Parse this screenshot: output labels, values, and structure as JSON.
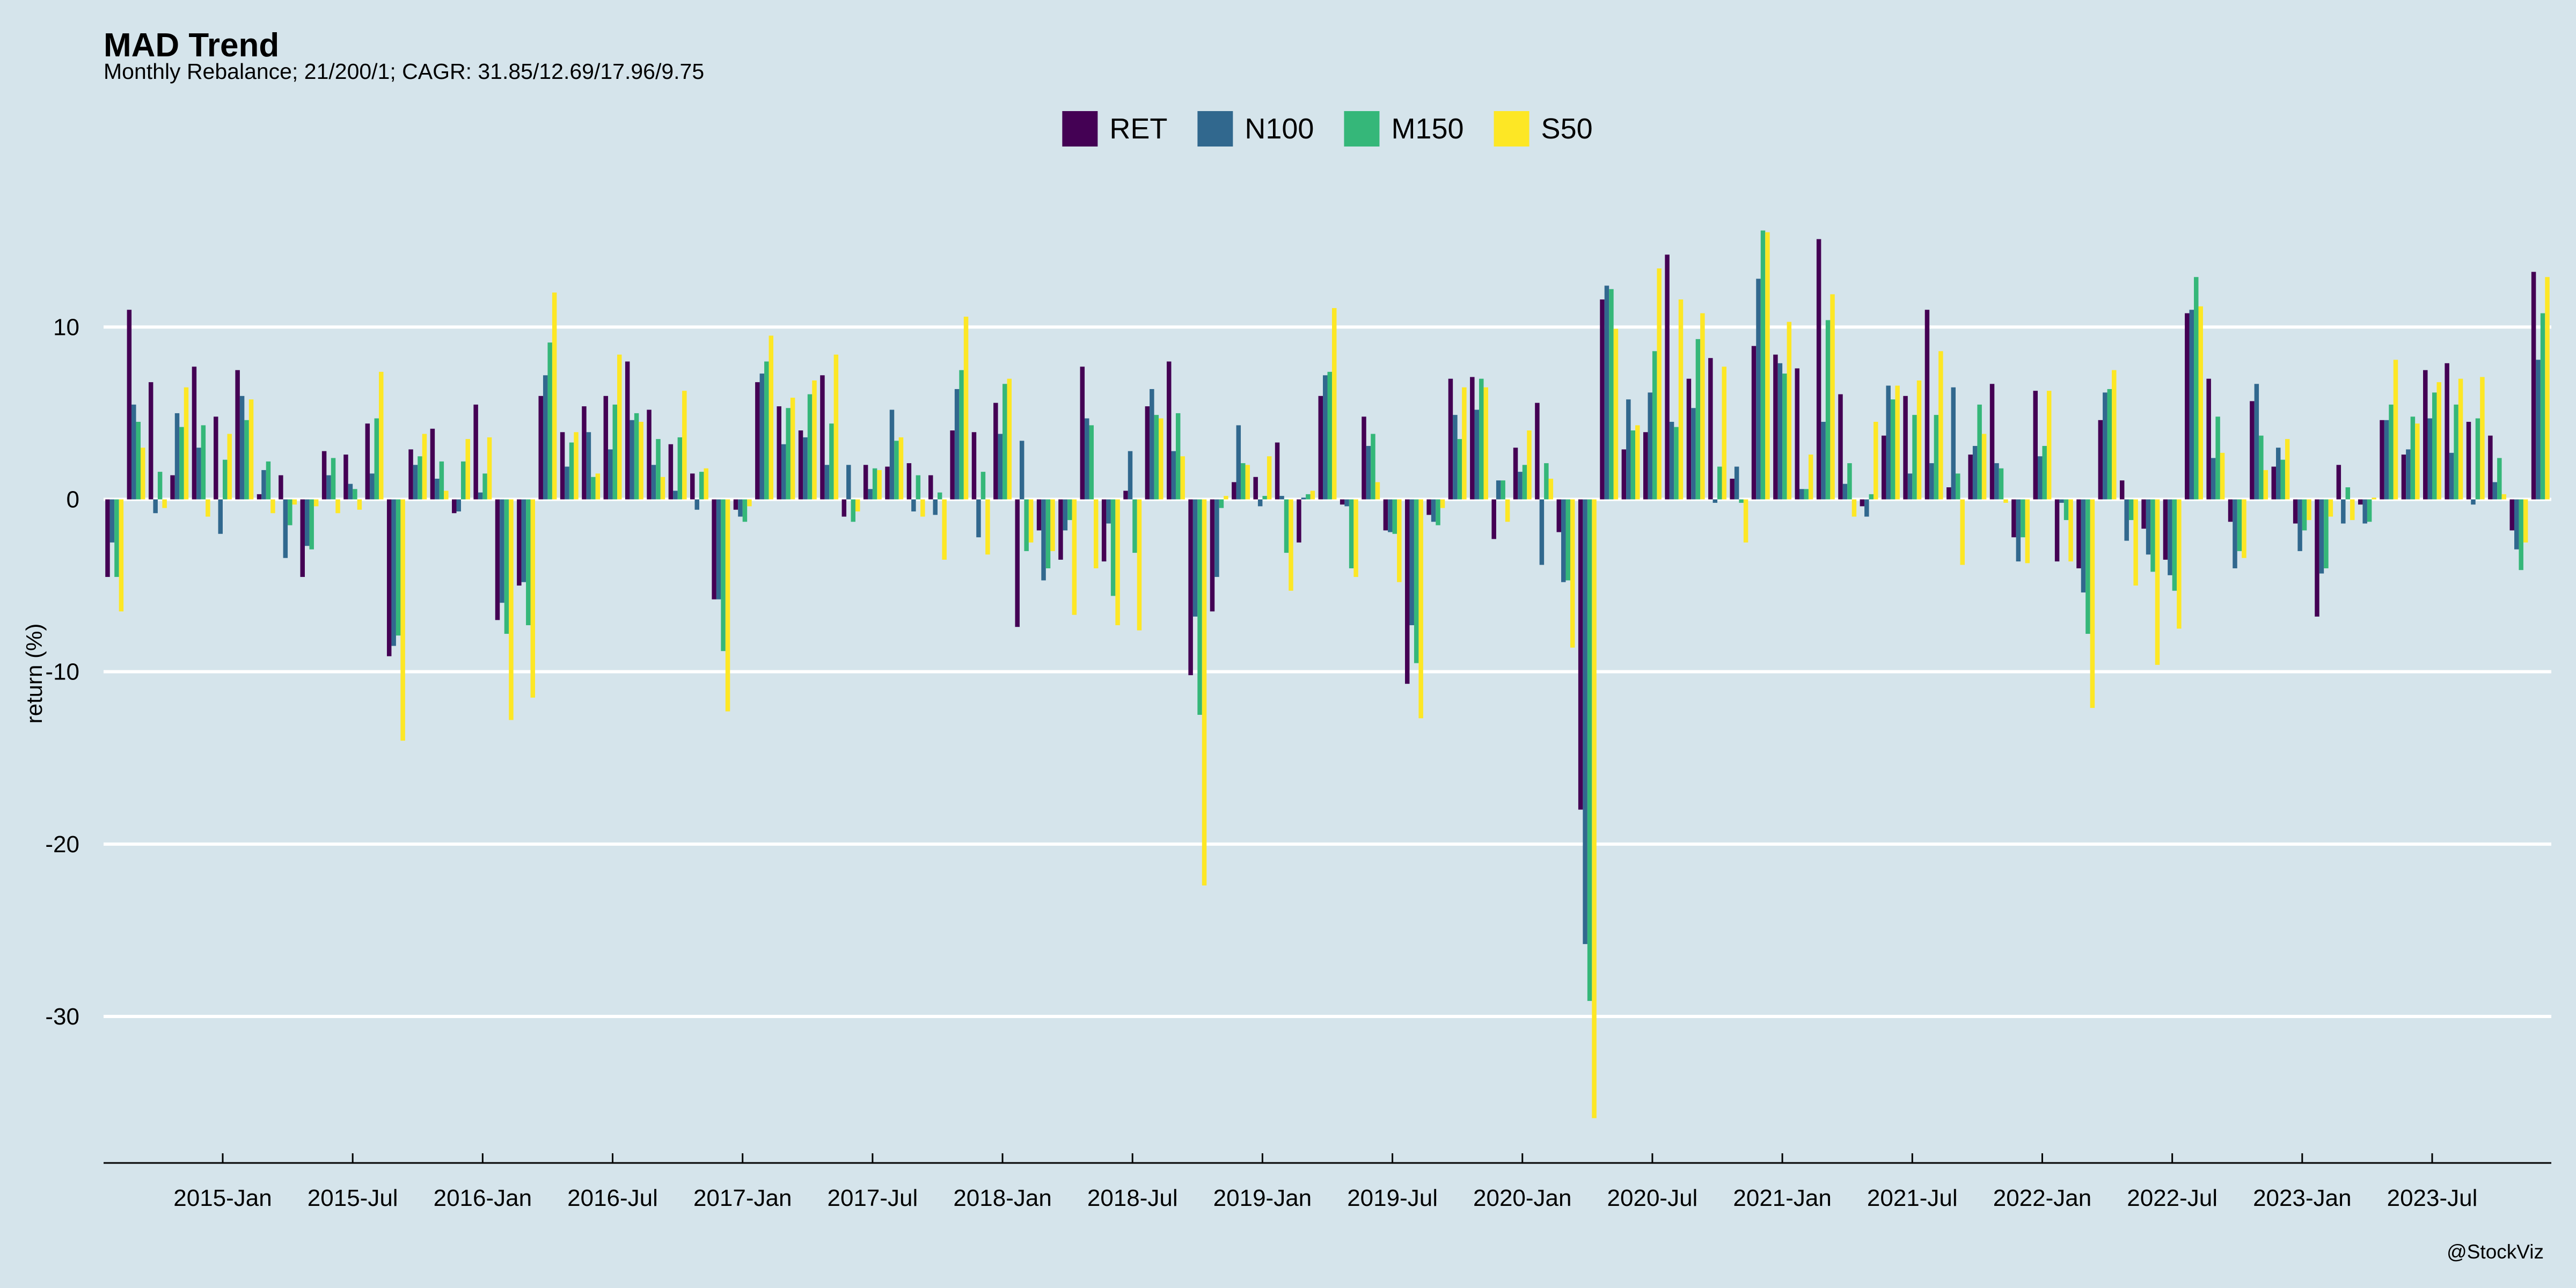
{
  "chart_data": {
    "type": "bar",
    "title": "MAD Trend",
    "subtitle": "Monthly Rebalance; 21/200/1; CAGR: 31.85/12.69/17.96/9.75",
    "y_label": "return (%)",
    "caption": "@StockViz",
    "x": [
      "2014-07",
      "2014-08",
      "2014-09",
      "2014-10",
      "2014-11",
      "2014-12",
      "2015-01",
      "2015-02",
      "2015-03",
      "2015-04",
      "2015-05",
      "2015-06",
      "2015-07",
      "2015-08",
      "2015-09",
      "2015-10",
      "2015-11",
      "2015-12",
      "2016-01",
      "2016-02",
      "2016-03",
      "2016-04",
      "2016-05",
      "2016-06",
      "2016-07",
      "2016-08",
      "2016-09",
      "2016-10",
      "2016-11",
      "2016-12",
      "2017-01",
      "2017-02",
      "2017-03",
      "2017-04",
      "2017-05",
      "2017-06",
      "2017-07",
      "2017-08",
      "2017-09",
      "2017-10",
      "2017-11",
      "2017-12",
      "2018-01",
      "2018-02",
      "2018-03",
      "2018-04",
      "2018-05",
      "2018-06",
      "2018-07",
      "2018-08",
      "2018-09",
      "2018-10",
      "2018-11",
      "2018-12",
      "2019-01",
      "2019-02",
      "2019-03",
      "2019-04",
      "2019-05",
      "2019-06",
      "2019-07",
      "2019-08",
      "2019-09",
      "2019-10",
      "2019-11",
      "2019-12",
      "2020-01",
      "2020-02",
      "2020-03",
      "2020-04",
      "2020-05",
      "2020-06",
      "2020-07",
      "2020-08",
      "2020-09",
      "2020-10",
      "2020-11",
      "2020-12",
      "2021-01",
      "2021-02",
      "2021-03",
      "2021-04",
      "2021-05",
      "2021-06",
      "2021-07",
      "2021-08",
      "2021-09",
      "2021-10",
      "2021-11",
      "2021-12",
      "2022-01",
      "2022-02",
      "2022-03",
      "2022-04",
      "2022-05",
      "2022-06",
      "2022-07",
      "2022-08",
      "2022-09",
      "2022-10",
      "2022-11",
      "2022-12",
      "2023-01",
      "2023-02",
      "2023-03",
      "2023-04",
      "2023-05",
      "2023-06",
      "2023-07",
      "2023-08",
      "2023-09",
      "2023-10",
      "2023-11"
    ],
    "series": [
      {
        "name": "RET",
        "color": "#440154",
        "values": [
          -4.5,
          11.0,
          6.8,
          1.4,
          7.7,
          4.8,
          7.5,
          0.3,
          1.4,
          -4.5,
          2.8,
          2.6,
          4.4,
          -9.1,
          2.9,
          4.1,
          -0.8,
          5.5,
          -7.0,
          -5.0,
          6.0,
          3.9,
          5.4,
          6.0,
          8.0,
          5.2,
          3.2,
          1.5,
          -5.8,
          -0.6,
          6.8,
          5.4,
          4.0,
          7.2,
          -1.0,
          2.0,
          1.9,
          2.1,
          1.4,
          4.0,
          3.9,
          5.6,
          -7.4,
          -1.8,
          -3.5,
          7.7,
          -3.6,
          0.5,
          5.4,
          8.0,
          -10.2,
          -6.5,
          1.0,
          1.3,
          3.3,
          -2.5,
          6.0,
          -0.3,
          4.8,
          -1.8,
          -10.7,
          -0.9,
          7.0,
          7.1,
          -2.3,
          3.0,
          5.6,
          -1.9,
          -18.0,
          11.6,
          2.9,
          3.9,
          14.2,
          7.0,
          8.2,
          1.2,
          8.9,
          8.4,
          7.6,
          15.1,
          6.1,
          -0.4,
          3.7,
          6.0,
          11.0,
          0.7,
          2.6,
          6.7,
          -2.2,
          6.3,
          -3.6,
          -4.0,
          4.6,
          1.1,
          -1.7,
          -3.5,
          10.8,
          7.0,
          -1.3,
          5.7,
          1.9,
          -1.4,
          -6.8,
          2.0,
          -0.3,
          4.6,
          2.6,
          7.5,
          7.9,
          4.5,
          3.7,
          -1.8,
          13.2
        ]
      },
      {
        "name": "N100",
        "color": "#31688e",
        "values": [
          -2.5,
          5.5,
          -0.8,
          5.0,
          3.0,
          -2.0,
          6.0,
          1.7,
          -3.4,
          -2.7,
          1.4,
          0.9,
          1.5,
          -8.5,
          2.0,
          1.2,
          -0.7,
          0.4,
          -6.0,
          -4.8,
          7.2,
          1.9,
          3.9,
          2.9,
          4.6,
          2.0,
          0.5,
          -0.6,
          -5.8,
          -1.0,
          7.3,
          3.2,
          3.6,
          2.0,
          2.0,
          0.6,
          5.2,
          -0.7,
          -0.9,
          6.4,
          -2.2,
          3.8,
          3.4,
          -4.7,
          -1.8,
          4.7,
          -1.4,
          2.8,
          6.4,
          2.8,
          -6.8,
          -4.5,
          4.3,
          -0.4,
          0.2,
          0.1,
          7.2,
          -0.4,
          3.1,
          -1.9,
          -7.3,
          -1.3,
          4.9,
          5.2,
          1.1,
          1.6,
          -3.8,
          -4.8,
          -25.8,
          12.4,
          5.8,
          6.2,
          4.5,
          5.3,
          -0.2,
          1.9,
          12.8,
          7.9,
          0.6,
          4.5,
          0.9,
          -1.0,
          6.6,
          1.5,
          2.1,
          6.5,
          3.1,
          2.1,
          -3.6,
          2.5,
          -0.2,
          -5.4,
          6.2,
          -2.4,
          -3.2,
          -4.4,
          11.0,
          2.4,
          -4.0,
          6.7,
          3.0,
          -3.0,
          -4.3,
          -1.4,
          -1.4,
          4.6,
          2.9,
          4.7,
          2.7,
          -0.3,
          1.0,
          -2.9,
          8.1
        ]
      },
      {
        "name": "M150",
        "color": "#35b779",
        "values": [
          -4.5,
          4.5,
          1.6,
          4.2,
          4.3,
          2.3,
          4.6,
          2.2,
          -1.5,
          -2.9,
          2.4,
          0.6,
          4.7,
          -7.9,
          2.5,
          2.2,
          2.2,
          1.5,
          -7.8,
          -7.3,
          9.1,
          3.3,
          1.3,
          5.5,
          5.0,
          3.5,
          3.6,
          1.6,
          -8.8,
          -1.3,
          8.0,
          5.3,
          6.1,
          4.4,
          -1.3,
          1.8,
          3.4,
          1.4,
          0.4,
          7.5,
          1.6,
          6.7,
          -3.0,
          -4.0,
          -1.2,
          4.3,
          -5.6,
          -3.1,
          4.9,
          5.0,
          -12.5,
          -0.5,
          2.1,
          0.2,
          -3.1,
          0.3,
          7.4,
          -4.0,
          3.8,
          -2.0,
          -9.5,
          -1.5,
          3.5,
          7.0,
          1.1,
          2.0,
          2.1,
          -4.7,
          -29.1,
          12.2,
          4.0,
          8.6,
          4.2,
          9.3,
          1.9,
          -0.2,
          15.6,
          7.3,
          0.6,
          10.4,
          2.1,
          0.3,
          5.8,
          4.9,
          4.9,
          1.5,
          5.5,
          1.8,
          -2.2,
          3.1,
          -1.2,
          -7.8,
          6.4,
          -1.2,
          -4.2,
          -5.3,
          12.9,
          4.8,
          -3.0,
          3.7,
          2.3,
          -1.8,
          -4.0,
          0.7,
          -1.3,
          5.5,
          4.8,
          6.2,
          5.5,
          4.7,
          2.4,
          -4.1,
          10.8
        ]
      },
      {
        "name": "S50",
        "color": "#fde725",
        "values": [
          -6.5,
          3.0,
          -0.5,
          6.5,
          -1.0,
          3.8,
          5.8,
          -0.8,
          -0.3,
          -0.4,
          -0.8,
          -0.6,
          7.4,
          -14.0,
          3.8,
          0.5,
          3.5,
          3.6,
          -12.8,
          -11.5,
          12.0,
          3.9,
          1.5,
          8.4,
          4.5,
          1.3,
          6.3,
          1.8,
          -12.3,
          -0.4,
          9.5,
          5.9,
          6.9,
          8.4,
          -0.7,
          1.7,
          3.6,
          -1.0,
          -3.5,
          10.6,
          -3.2,
          7.0,
          -2.5,
          -3.0,
          -6.7,
          -4.0,
          -7.3,
          -7.6,
          4.7,
          2.5,
          -22.4,
          0.2,
          2.0,
          2.5,
          -5.3,
          0.5,
          11.1,
          -4.5,
          1.0,
          -4.8,
          -12.7,
          -0.5,
          6.5,
          6.5,
          -1.3,
          4.0,
          1.2,
          -8.6,
          -35.9,
          9.9,
          4.3,
          13.4,
          11.6,
          10.8,
          7.7,
          -2.5,
          15.5,
          10.3,
          2.6,
          11.9,
          -1.0,
          4.5,
          6.6,
          6.9,
          8.6,
          -3.8,
          3.8,
          -0.2,
          -3.7,
          6.3,
          -3.6,
          -12.1,
          7.5,
          -5.0,
          -9.6,
          -7.5,
          11.2,
          2.7,
          -3.4,
          1.7,
          3.5,
          -1.2,
          -1.0,
          -1.2,
          0.1,
          8.1,
          4.4,
          6.8,
          7.0,
          7.1,
          0.3,
          -2.5,
          12.9
        ]
      }
    ],
    "xlim": [
      "2014-07",
      "2023-12"
    ],
    "xticks": [
      {
        "value": "2015-01",
        "label": "2015-Jan"
      },
      {
        "value": "2015-07",
        "label": "2015-Jul"
      },
      {
        "value": "2016-01",
        "label": "2016-Jan"
      },
      {
        "value": "2016-07",
        "label": "2016-Jul"
      },
      {
        "value": "2017-01",
        "label": "2017-Jan"
      },
      {
        "value": "2017-07",
        "label": "2017-Jul"
      },
      {
        "value": "2018-01",
        "label": "2018-Jan"
      },
      {
        "value": "2018-07",
        "label": "2018-Jul"
      },
      {
        "value": "2019-01",
        "label": "2019-Jan"
      },
      {
        "value": "2019-07",
        "label": "2019-Jul"
      },
      {
        "value": "2020-01",
        "label": "2020-Jan"
      },
      {
        "value": "2020-07",
        "label": "2020-Jul"
      },
      {
        "value": "2021-01",
        "label": "2021-Jan"
      },
      {
        "value": "2021-07",
        "label": "2021-Jul"
      },
      {
        "value": "2022-01",
        "label": "2022-Jan"
      },
      {
        "value": "2022-07",
        "label": "2022-Jul"
      },
      {
        "value": "2023-01",
        "label": "2023-Jan"
      },
      {
        "value": "2023-07",
        "label": "2023-Jul"
      }
    ],
    "ylim": [
      -38.5,
      18.2
    ],
    "yticks": [
      -30,
      -20,
      -10,
      0,
      10
    ],
    "grid": true,
    "legend": "top"
  }
}
